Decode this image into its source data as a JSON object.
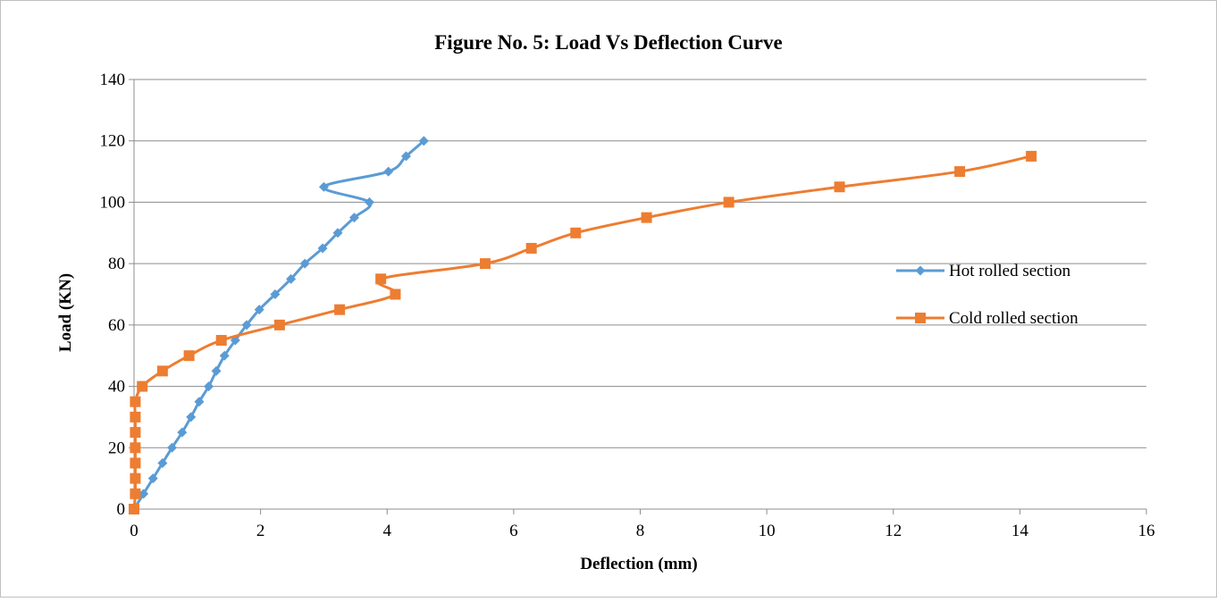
{
  "chart_data": {
    "type": "line",
    "title": "Figure No. 5: Load Vs Deflection Curve",
    "xlabel": "Deflection (mm)",
    "ylabel": "Load (KN)",
    "xlim": [
      0,
      16
    ],
    "ylim": [
      0,
      140
    ],
    "x_ticks": [
      0,
      2,
      4,
      6,
      8,
      10,
      12,
      14,
      16
    ],
    "y_ticks": [
      0,
      20,
      40,
      60,
      80,
      100,
      120,
      140
    ],
    "grid": "horizontal",
    "legend_position": "right",
    "smooth": true,
    "series": [
      {
        "name": "Hot rolled section",
        "color": "#5B9BD5",
        "marker": "diamond",
        "points": [
          [
            0.0,
            0
          ],
          [
            0.15,
            5
          ],
          [
            0.3,
            10
          ],
          [
            0.45,
            15
          ],
          [
            0.6,
            20
          ],
          [
            0.76,
            25
          ],
          [
            0.9,
            30
          ],
          [
            1.03,
            35
          ],
          [
            1.18,
            40
          ],
          [
            1.3,
            45
          ],
          [
            1.43,
            50
          ],
          [
            1.6,
            55
          ],
          [
            1.78,
            60
          ],
          [
            1.98,
            65
          ],
          [
            2.23,
            70
          ],
          [
            2.48,
            75
          ],
          [
            2.7,
            80
          ],
          [
            2.98,
            85
          ],
          [
            3.22,
            90
          ],
          [
            3.48,
            95
          ],
          [
            3.72,
            100
          ],
          [
            3.0,
            105
          ],
          [
            4.02,
            110
          ],
          [
            4.3,
            115
          ],
          [
            4.58,
            120
          ]
        ]
      },
      {
        "name": "Cold rolled section",
        "color": "#ED7D31",
        "marker": "square",
        "points": [
          [
            0.0,
            0
          ],
          [
            0.02,
            5
          ],
          [
            0.02,
            10
          ],
          [
            0.02,
            15
          ],
          [
            0.02,
            20
          ],
          [
            0.02,
            25
          ],
          [
            0.02,
            30
          ],
          [
            0.02,
            35
          ],
          [
            0.13,
            40
          ],
          [
            0.45,
            45
          ],
          [
            0.87,
            50
          ],
          [
            1.38,
            55
          ],
          [
            2.3,
            60
          ],
          [
            3.25,
            65
          ],
          [
            4.13,
            70
          ],
          [
            3.9,
            75
          ],
          [
            5.55,
            80
          ],
          [
            6.28,
            85
          ],
          [
            6.98,
            90
          ],
          [
            8.1,
            95
          ],
          [
            9.4,
            100
          ],
          [
            11.15,
            105
          ],
          [
            13.05,
            110
          ],
          [
            14.18,
            115
          ]
        ]
      }
    ]
  }
}
